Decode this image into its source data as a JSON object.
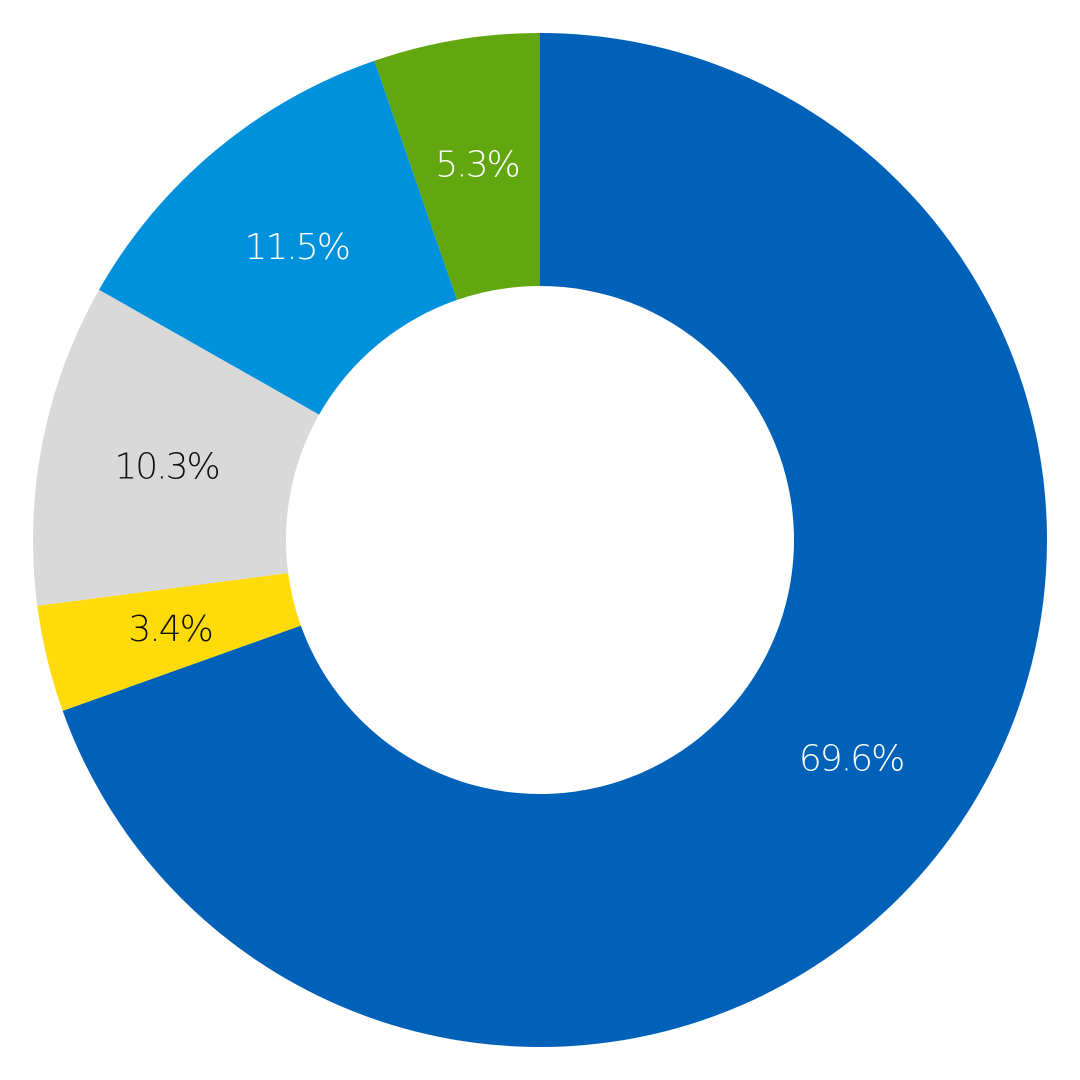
{
  "chart_data": {
    "type": "pie",
    "donut": true,
    "slices": [
      {
        "label": "69.6%",
        "value": 69.6,
        "color": "#0061b8",
        "label_color": "#ffffff"
      },
      {
        "label": "3.4%",
        "value": 3.4,
        "color": "#ffdb0a",
        "label_color": "#111111"
      },
      {
        "label": "10.3%",
        "value": 10.3,
        "color": "#d9d9d9",
        "label_color": "#111111"
      },
      {
        "label": "11.5%",
        "value": 11.5,
        "color": "#0091dc",
        "label_color": "#ffffff"
      },
      {
        "label": "5.3%",
        "value": 5.3,
        "color": "#62a70f",
        "label_color": "#ffffff"
      }
    ],
    "start_angle_deg": 0,
    "direction": "clockwise",
    "legend": "none"
  }
}
